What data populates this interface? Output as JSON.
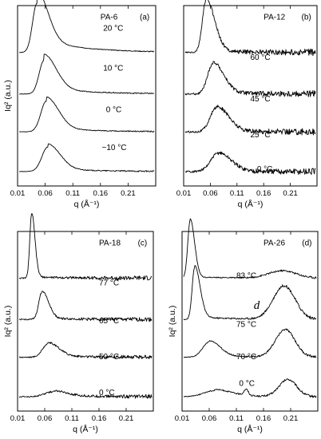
{
  "chart_data": [
    {
      "type": "line",
      "panel_label": "PA-6",
      "panel_tag": "(a)",
      "xlabel": "q (Å⁻¹)",
      "ylabel": "Iq² (a.u.)",
      "xlim": [
        0.01,
        0.26
      ],
      "xticks": [
        "0.01",
        "0.06",
        "0.11",
        "0.16",
        "0.21"
      ],
      "series": [
        {
          "name": "20 °C",
          "peak_q": 0.045,
          "peak_height": 0.8,
          "peak_width": 0.008,
          "tail_width": 0.02,
          "plateau": 0.22,
          "noise": 0.006
        },
        {
          "name": "10 °C",
          "peak_q": 0.058,
          "peak_height": 0.55,
          "peak_width": 0.009,
          "tail_width": 0.022,
          "plateau": 0.1,
          "noise": 0.008
        },
        {
          "name": "0 °C",
          "peak_q": 0.062,
          "peak_height": 0.5,
          "peak_width": 0.01,
          "tail_width": 0.022,
          "plateau": 0.07,
          "noise": 0.008
        },
        {
          "name": "−10 °C",
          "peak_q": 0.065,
          "peak_height": 0.4,
          "peak_width": 0.011,
          "tail_width": 0.022,
          "plateau": 0.05,
          "noise": 0.009
        }
      ]
    },
    {
      "type": "line",
      "panel_label": "PA-12",
      "panel_tag": "(b)",
      "xlabel": "q (Å⁻¹)",
      "ylabel": "",
      "xlim": [
        0.01,
        0.26
      ],
      "xticks": [
        "0.01",
        "0.06",
        "0.11",
        "0.16",
        "0.21"
      ],
      "series": [
        {
          "name": "60 °C",
          "peak_q": 0.052,
          "peak_height": 0.85,
          "peak_width": 0.007,
          "tail_width": 0.016,
          "plateau": 0.03,
          "noise": 0.045
        },
        {
          "name": "45 °C",
          "peak_q": 0.065,
          "peak_height": 0.5,
          "peak_width": 0.01,
          "tail_width": 0.02,
          "plateau": 0.02,
          "noise": 0.045
        },
        {
          "name": "25 °C",
          "peak_q": 0.072,
          "peak_height": 0.4,
          "peak_width": 0.012,
          "tail_width": 0.022,
          "plateau": 0.02,
          "noise": 0.045
        },
        {
          "name": "0 °C",
          "peak_q": 0.075,
          "peak_height": 0.3,
          "peak_width": 0.014,
          "tail_width": 0.024,
          "plateau": 0.01,
          "noise": 0.045
        }
      ]
    },
    {
      "type": "line",
      "panel_label": "PA-18",
      "panel_tag": "(c)",
      "xlabel": "q (Å⁻¹)",
      "ylabel": "Iq² (a.u.)",
      "xlim": [
        0.01,
        0.26
      ],
      "xticks": [
        "0.01",
        "0.06",
        "0.11",
        "0.16",
        "0.21"
      ],
      "series": [
        {
          "name": "77 °C",
          "peak_q": 0.036,
          "peak_height": 1.05,
          "peak_width": 0.0035,
          "tail_width": 0.006,
          "plateau": 0.02,
          "noise": 0.03
        },
        {
          "name": "65 °C",
          "peak_q": 0.055,
          "peak_height": 0.45,
          "peak_width": 0.006,
          "tail_width": 0.012,
          "plateau": 0.02,
          "noise": 0.028
        },
        {
          "name": "50 °C",
          "peak_q": 0.066,
          "peak_height": 0.22,
          "peak_width": 0.01,
          "tail_width": 0.02,
          "plateau": 0.02,
          "noise": 0.025
        },
        {
          "name": "0 °C",
          "peak_q": 0.075,
          "peak_height": 0.08,
          "peak_width": 0.015,
          "tail_width": 0.025,
          "plateau": 0.02,
          "noise": 0.025
        }
      ]
    },
    {
      "type": "line",
      "panel_label": "PA-26",
      "panel_tag": "(d)",
      "xlabel": "q (Å⁻¹)",
      "ylabel": "Iq² (a.u.)",
      "annotation": "d",
      "xlim": [
        0.01,
        0.26
      ],
      "xticks": [
        "0.01",
        "0.06",
        "0.11",
        "0.16",
        "0.21"
      ],
      "series": [
        {
          "name": "83 °C",
          "peak_q": 0.025,
          "peak_height": 0.95,
          "peak_width": 0.0045,
          "tail_width": 0.008,
          "plateau": 0.02,
          "noise": 0.014,
          "peak2_q": 0.195,
          "peak2_height": 0.12,
          "peak2_width": 0.025
        },
        {
          "name": "75 °C",
          "peak_q": 0.033,
          "peak_height": 0.85,
          "peak_width": 0.0045,
          "tail_width": 0.01,
          "plateau": 0.04,
          "noise": 0.02,
          "peak2_q": 0.198,
          "peak2_height": 0.55,
          "peak2_width": 0.02
        },
        {
          "name": "70 °C",
          "peak_q": 0.06,
          "peak_height": 0.25,
          "peak_width": 0.012,
          "tail_width": 0.02,
          "plateau": 0.02,
          "noise": 0.016,
          "peak2_q": 0.2,
          "peak2_height": 0.45,
          "peak2_width": 0.018
        },
        {
          "name": "0 °C",
          "peak_q": 0.07,
          "peak_height": 0.1,
          "peak_width": 0.02,
          "tail_width": 0.03,
          "plateau": 0.02,
          "noise": 0.016,
          "peak2_q": 0.205,
          "peak2_height": 0.28,
          "peak2_width": 0.016,
          "peak3_q": 0.128,
          "peak3_height": 0.1,
          "peak3_width": 0.004
        }
      ]
    }
  ]
}
